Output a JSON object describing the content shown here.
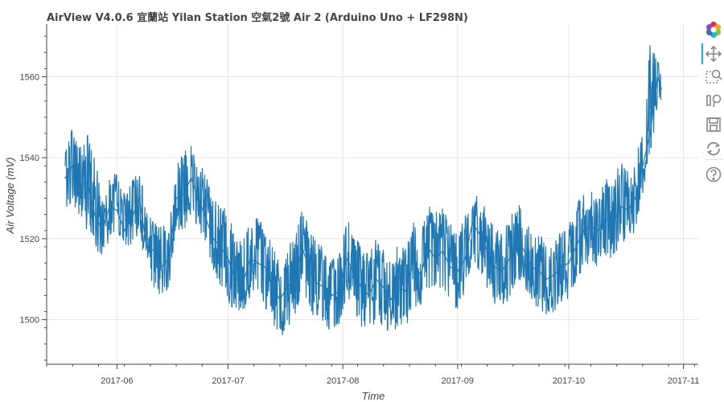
{
  "chart_data": {
    "type": "line",
    "title": "AirView V4.0.6 宜蘭站 Yilan Station  空氣2號 Air 2 (Arduino Uno + LF298N)",
    "xlabel": "Time",
    "ylabel": "Air Voltage (mV)",
    "x_tick_labels": [
      "2017-06",
      "2017-07",
      "2017-08",
      "2017-09",
      "2017-10",
      "2017-11"
    ],
    "x_ticks": [
      "2017-06-01",
      "2017-07-01",
      "2017-08-01",
      "2017-09-01",
      "2017-10-01",
      "2017-11-01"
    ],
    "y_ticks": [
      1500,
      1520,
      1540,
      1560
    ],
    "xlim": [
      "2017-05-13",
      "2017-11-05"
    ],
    "ylim": [
      1489,
      1573
    ],
    "grid": true,
    "series_color": "#1f77b4",
    "series": [
      {
        "x": [
          "2017-05-18",
          "2017-05-20",
          "2017-05-22",
          "2017-05-24",
          "2017-05-26",
          "2017-05-28",
          "2017-05-30",
          "2017-06-01",
          "2017-06-03",
          "2017-06-05",
          "2017-06-07",
          "2017-06-09",
          "2017-06-11",
          "2017-06-13",
          "2017-06-15",
          "2017-06-17",
          "2017-06-19",
          "2017-06-21",
          "2017-06-23",
          "2017-06-25",
          "2017-06-27",
          "2017-06-29",
          "2017-07-01",
          "2017-07-03",
          "2017-07-05",
          "2017-07-07",
          "2017-07-09",
          "2017-07-11",
          "2017-07-13",
          "2017-07-15",
          "2017-07-17",
          "2017-07-19",
          "2017-07-21",
          "2017-07-23",
          "2017-07-25",
          "2017-07-27",
          "2017-07-29",
          "2017-07-31",
          "2017-08-02",
          "2017-08-04",
          "2017-08-06",
          "2017-08-08",
          "2017-08-10",
          "2017-08-12",
          "2017-08-14",
          "2017-08-16",
          "2017-08-18",
          "2017-08-20",
          "2017-08-22",
          "2017-08-24",
          "2017-08-26",
          "2017-08-28",
          "2017-08-30",
          "2017-09-01",
          "2017-09-03",
          "2017-09-05",
          "2017-09-07",
          "2017-09-09",
          "2017-09-11",
          "2017-09-13",
          "2017-09-15",
          "2017-09-17",
          "2017-09-19",
          "2017-09-21",
          "2017-09-23",
          "2017-09-25",
          "2017-09-27",
          "2017-09-29",
          "2017-10-01",
          "2017-10-03",
          "2017-10-05",
          "2017-10-07",
          "2017-10-09",
          "2017-10-11",
          "2017-10-13",
          "2017-10-15",
          "2017-10-17",
          "2017-10-19",
          "2017-10-21",
          "2017-10-23",
          "2017-10-25",
          "2017-10-26"
        ],
        "y": [
          1535,
          1538,
          1533,
          1534,
          1526,
          1522,
          1528,
          1527,
          1522,
          1525,
          1530,
          1518,
          1517,
          1513,
          1515,
          1530,
          1531,
          1535,
          1530,
          1525,
          1520,
          1518,
          1515,
          1510,
          1509,
          1515,
          1514,
          1513,
          1508,
          1505,
          1508,
          1510,
          1518,
          1512,
          1509,
          1508,
          1506,
          1507,
          1515,
          1512,
          1508,
          1506,
          1510,
          1508,
          1505,
          1508,
          1507,
          1514,
          1511,
          1518,
          1515,
          1517,
          1513,
          1512,
          1515,
          1524,
          1521,
          1517,
          1513,
          1512,
          1515,
          1520,
          1517,
          1513,
          1512,
          1510,
          1511,
          1513,
          1514,
          1518,
          1522,
          1523,
          1522,
          1525,
          1524,
          1528,
          1527,
          1530,
          1538,
          1546,
          1560,
          1557
        ],
        "band_lower": [
          1528,
          1528,
          1525,
          1522,
          1518,
          1515,
          1520,
          1520,
          1516,
          1518,
          1522,
          1512,
          1508,
          1505,
          1508,
          1522,
          1522,
          1524,
          1522,
          1518,
          1512,
          1508,
          1504,
          1502,
          1502,
          1505,
          1504,
          1503,
          1500,
          1494,
          1498,
          1500,
          1508,
          1502,
          1500,
          1498,
          1497,
          1498,
          1506,
          1503,
          1498,
          1497,
          1499,
          1498,
          1496,
          1498,
          1497,
          1504,
          1502,
          1508,
          1505,
          1507,
          1503,
          1502,
          1505,
          1514,
          1510,
          1507,
          1504,
          1503,
          1505,
          1510,
          1508,
          1504,
          1503,
          1501,
          1502,
          1504,
          1505,
          1509,
          1512,
          1514,
          1513,
          1516,
          1515,
          1519,
          1518,
          1521,
          1530,
          1540,
          1553,
          1554
        ],
        "band_upper": [
          1541,
          1549,
          1545,
          1546,
          1540,
          1532,
          1536,
          1536,
          1531,
          1534,
          1538,
          1527,
          1526,
          1523,
          1524,
          1538,
          1543,
          1543,
          1540,
          1536,
          1531,
          1528,
          1528,
          1520,
          1519,
          1525,
          1525,
          1524,
          1518,
          1516,
          1518,
          1522,
          1528,
          1522,
          1519,
          1518,
          1515,
          1517,
          1525,
          1522,
          1518,
          1516,
          1520,
          1518,
          1514,
          1520,
          1518,
          1525,
          1521,
          1528,
          1528,
          1528,
          1524,
          1523,
          1526,
          1532,
          1530,
          1527,
          1522,
          1522,
          1524,
          1530,
          1526,
          1522,
          1521,
          1520,
          1521,
          1523,
          1524,
          1528,
          1532,
          1532,
          1530,
          1535,
          1533,
          1540,
          1537,
          1539,
          1548,
          1569,
          1565,
          1560
        ]
      }
    ]
  },
  "toolbar": {
    "logo_icon": "bokeh-logo-icon",
    "tools": [
      "pan-icon",
      "box-zoom-icon",
      "wheel-zoom-icon",
      "save-icon",
      "reset-icon",
      "help-icon"
    ]
  }
}
